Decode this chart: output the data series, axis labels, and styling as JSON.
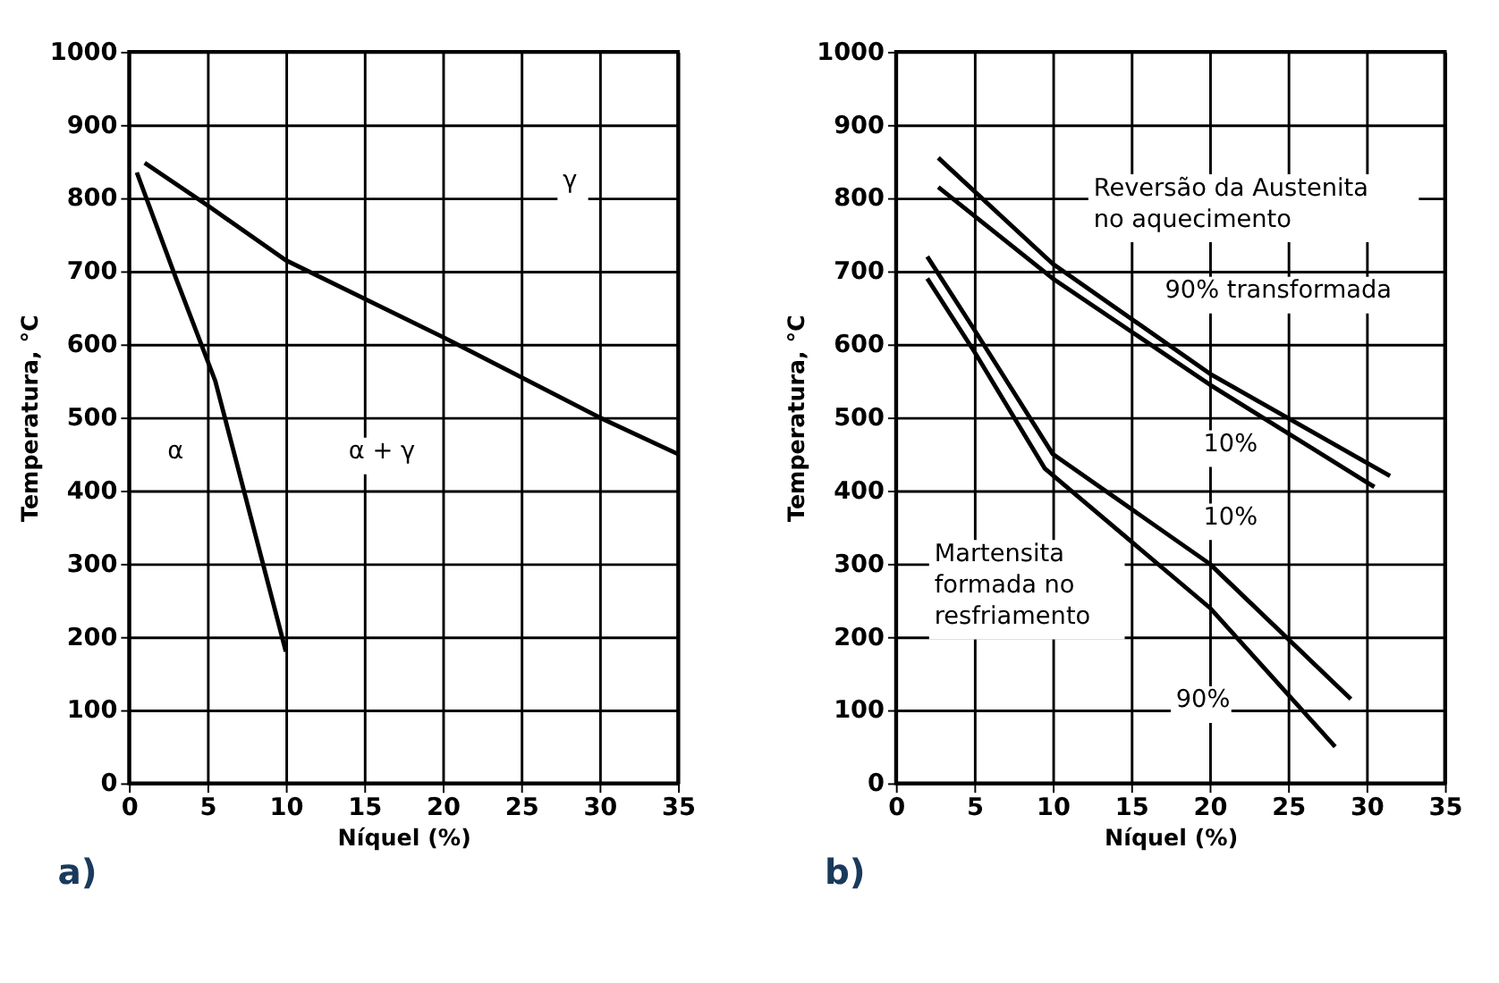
{
  "chart_data": [
    {
      "type": "line",
      "xlabel": "Níquel (%)",
      "ylabel": "Temperatura, °C",
      "xlim": [
        0,
        35
      ],
      "ylim": [
        0,
        1000
      ],
      "xticks": [
        0,
        5,
        10,
        15,
        20,
        25,
        30,
        35
      ],
      "yticks": [
        0,
        100,
        200,
        300,
        400,
        500,
        600,
        700,
        800,
        900,
        1000
      ],
      "grid": true,
      "series": [
        {
          "color": "#000000",
          "x": [
            1,
            5,
            10,
            20,
            30,
            35
          ],
          "values": [
            848,
            790,
            715,
            610,
            500,
            450
          ]
        },
        {
          "color": "#000000",
          "x": [
            0.5,
            3,
            5.5,
            10
          ],
          "values": [
            835,
            690,
            550,
            180
          ]
        }
      ],
      "annotations": [
        "α",
        "α + γ",
        "γ",
        "a)"
      ]
    },
    {
      "type": "line",
      "xlabel": "Níquel (%)",
      "ylabel": "Temperatura, °C",
      "xlim": [
        0,
        35
      ],
      "ylim": [
        0,
        1000
      ],
      "xticks": [
        0,
        5,
        10,
        15,
        20,
        25,
        30,
        35
      ],
      "yticks": [
        0,
        100,
        200,
        300,
        400,
        500,
        600,
        700,
        800,
        900,
        1000
      ],
      "grid": true,
      "series": [
        {
          "color": "#000000",
          "x": [
            2.7,
            10,
            20,
            31.5
          ],
          "values": [
            855,
            710,
            560,
            420
          ]
        },
        {
          "color": "#000000",
          "x": [
            2.7,
            10,
            20,
            30.5
          ],
          "values": [
            815,
            690,
            545,
            405
          ]
        },
        {
          "color": "#000000",
          "x": [
            2,
            5,
            10,
            20,
            29
          ],
          "values": [
            720,
            620,
            450,
            300,
            115
          ]
        },
        {
          "color": "#000000",
          "x": [
            2,
            5,
            9.5,
            20,
            28
          ],
          "values": [
            690,
            590,
            430,
            240,
            50
          ]
        }
      ],
      "annotations": [
        "Reversão da Austenita\nno aquecimento",
        "90% transformada",
        "10%",
        "10%",
        "Martensita\nformada no\nresfriamento",
        "90%",
        "b)"
      ]
    }
  ]
}
